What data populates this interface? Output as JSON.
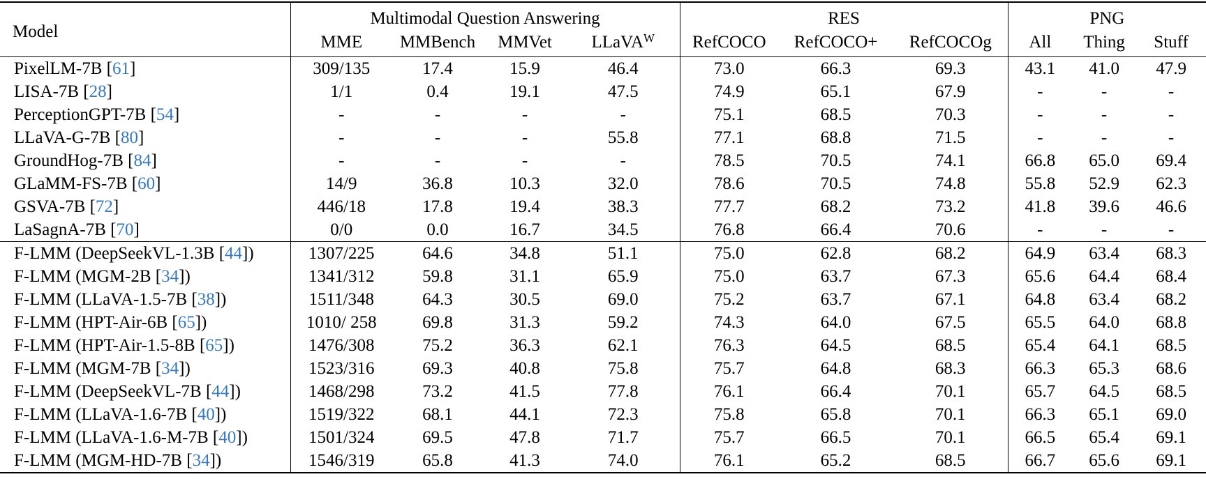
{
  "header": {
    "model": "Model",
    "groups": {
      "mqa": "Multimodal Question Answering",
      "res": "RES",
      "png": "PNG"
    },
    "columns": {
      "mme": "MME",
      "mmbench": "MMBench",
      "mmvet": "MMVet",
      "llava_w": "LLaVA",
      "llava_w_sup": "W",
      "refcoco": "RefCOCO",
      "refcoco_plus": "RefCOCO+",
      "refcocog": "RefCOCOg",
      "all": "All",
      "thing": "Thing",
      "stuff": "Stuff"
    }
  },
  "rows_top": [
    {
      "model": "PixelLM-7B [",
      "ref": "61",
      "close": "]",
      "cells": [
        "309/135",
        "17.4",
        "15.9",
        "46.4",
        "73.0",
        "66.3",
        "69.3",
        "43.1",
        "41.0",
        "47.9"
      ]
    },
    {
      "model": "LISA-7B [",
      "ref": "28",
      "close": "]",
      "cells": [
        "1/1",
        "0.4",
        "19.1",
        "47.5",
        "74.9",
        "65.1",
        "67.9",
        "-",
        "-",
        "-"
      ]
    },
    {
      "model": "PerceptionGPT-7B [",
      "ref": "54",
      "close": "]",
      "cells": [
        "-",
        "-",
        "-",
        "-",
        "75.1",
        "68.5",
        "70.3",
        "-",
        "-",
        "-"
      ]
    },
    {
      "model": "LLaVA-G-7B [",
      "ref": "80",
      "close": "]",
      "cells": [
        "-",
        "-",
        "-",
        "55.8",
        "77.1",
        "68.8",
        "71.5",
        "-",
        "-",
        "-"
      ]
    },
    {
      "model": "GroundHog-7B [",
      "ref": "84",
      "close": "]",
      "cells": [
        "-",
        "-",
        "-",
        "-",
        "78.5",
        "70.5",
        "74.1",
        "66.8",
        "65.0",
        "69.4"
      ]
    },
    {
      "model": "GLaMM-FS-7B [",
      "ref": "60",
      "close": "]",
      "cells": [
        "14/9",
        "36.8",
        "10.3",
        "32.0",
        "78.6",
        "70.5",
        "74.8",
        "55.8",
        "52.9",
        "62.3"
      ]
    },
    {
      "model": "GSVA-7B [",
      "ref": "72",
      "close": "]",
      "cells": [
        "446/18",
        "17.8",
        "19.4",
        "38.3",
        "77.7",
        "68.2",
        "73.2",
        "41.8",
        "39.6",
        "46.6"
      ]
    },
    {
      "model": "LaSagnA-7B [",
      "ref": "70",
      "close": "]",
      "cells": [
        "0/0",
        "0.0",
        "16.7",
        "34.5",
        "76.8",
        "66.4",
        "70.6",
        "-",
        "-",
        "-"
      ]
    }
  ],
  "rows_bottom": [
    {
      "model": "F-LMM (DeepSeekVL-1.3B [",
      "ref": "44",
      "close": "])",
      "cells": [
        "1307/225",
        "64.6",
        "34.8",
        "51.1",
        "75.0",
        "62.8",
        "68.2",
        "64.9",
        "63.4",
        "68.3"
      ]
    },
    {
      "model": "F-LMM (MGM-2B [",
      "ref": "34",
      "close": "])",
      "cells": [
        "1341/312",
        "59.8",
        "31.1",
        "65.9",
        "75.0",
        "63.7",
        "67.3",
        "65.6",
        "64.4",
        "68.4"
      ]
    },
    {
      "model": "F-LMM (LLaVA-1.5-7B [",
      "ref": "38",
      "close": "])",
      "cells": [
        "1511/348",
        "64.3",
        "30.5",
        "69.0",
        "75.2",
        "63.7",
        "67.1",
        "64.8",
        "63.4",
        "68.2"
      ]
    },
    {
      "model": "F-LMM (HPT-Air-6B [",
      "ref": "65",
      "close": "])",
      "cells": [
        "1010/ 258",
        "69.8",
        "31.3",
        "59.2",
        "74.3",
        "64.0",
        "67.5",
        "65.5",
        "64.0",
        "68.8"
      ]
    },
    {
      "model": "F-LMM (HPT-Air-1.5-8B [",
      "ref": "65",
      "close": "])",
      "cells": [
        "1476/308",
        "75.2",
        "36.3",
        "62.1",
        "76.3",
        "64.5",
        "68.5",
        "65.4",
        "64.1",
        "68.5"
      ]
    },
    {
      "model": "F-LMM (MGM-7B [",
      "ref": "34",
      "close": "])",
      "cells": [
        "1523/316",
        "69.3",
        "40.8",
        "75.8",
        "75.7",
        "64.8",
        "68.3",
        "66.3",
        "65.3",
        "68.6"
      ]
    },
    {
      "model": "F-LMM (DeepSeekVL-7B [",
      "ref": "44",
      "close": "])",
      "cells": [
        "1468/298",
        "73.2",
        "41.5",
        "77.8",
        "76.1",
        "66.4",
        "70.1",
        "65.7",
        "64.5",
        "68.5"
      ]
    },
    {
      "model": "F-LMM (LLaVA-1.6-7B [",
      "ref": "40",
      "close": "])",
      "cells": [
        "1519/322",
        "68.1",
        "44.1",
        "72.3",
        "75.8",
        "65.8",
        "70.1",
        "66.3",
        "65.1",
        "69.0"
      ]
    },
    {
      "model": "F-LMM (LLaVA-1.6-M-7B [",
      "ref": "40",
      "close": "])",
      "cells": [
        "1501/324",
        "69.5",
        "47.8",
        "71.7",
        "75.7",
        "66.5",
        "70.1",
        "66.5",
        "65.4",
        "69.1"
      ]
    },
    {
      "model": "F-LMM (MGM-HD-7B [",
      "ref": "34",
      "close": "])",
      "cells": [
        "1546/319",
        "65.8",
        "41.3",
        "74.0",
        "76.1",
        "65.2",
        "68.5",
        "66.7",
        "65.6",
        "69.1"
      ]
    }
  ]
}
